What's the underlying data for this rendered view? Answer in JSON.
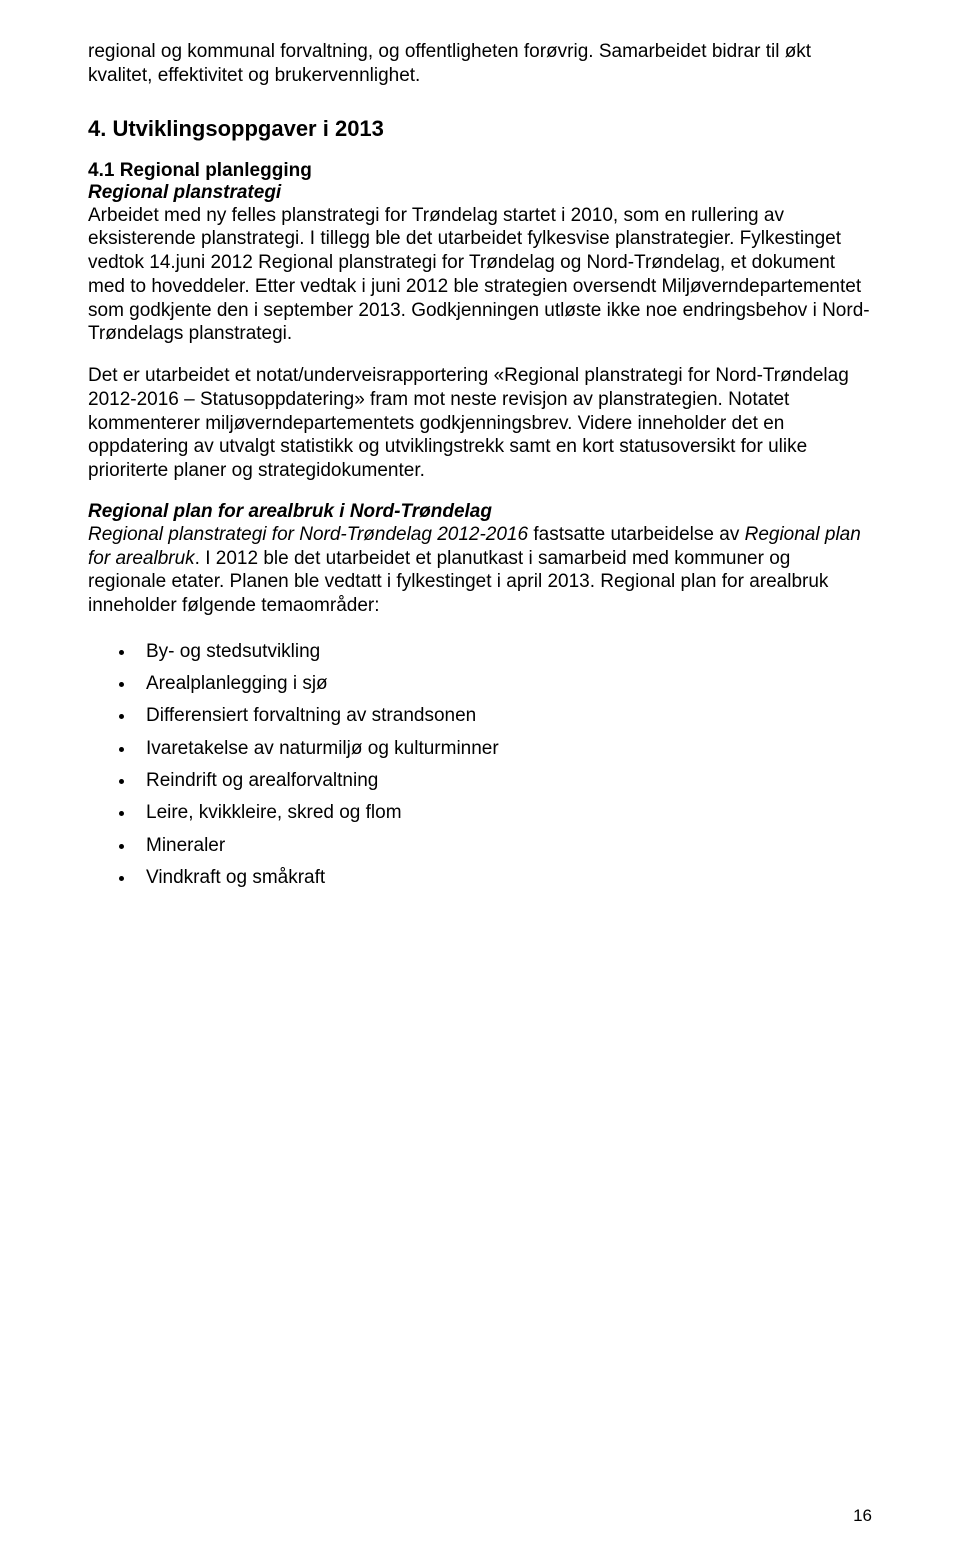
{
  "intro": "regional og kommunal forvaltning, og offentligheten forøvrig. Samarbeidet bidrar til økt kvalitet, effektivitet og brukervennlighet.",
  "h2": "4. Utviklingsoppgaver i 2013",
  "h3": "4.1 Regional planlegging",
  "s1_heading": "Regional planstrategi",
  "s1_para": "Arbeidet med ny felles planstrategi for Trøndelag startet i 2010, som en rullering av eksisterende planstrategi. I tillegg ble det utarbeidet fylkesvise planstrategier. Fylkestinget vedtok 14.juni 2012 Regional planstrategi for Trøndelag og Nord-Trøndelag, et dokument med to hoveddeler. Etter vedtak i juni 2012 ble strategien oversendt Miljøverndepartementet som godkjente den i september 2013. Godkjenningen utløste ikke noe endringsbehov i Nord-Trøndelags planstrategi.",
  "s1_para2": "Det er utarbeidet et notat/underveisrapportering «Regional planstrategi for Nord-Trøndelag 2012-2016 – Statusoppdatering» fram mot neste revisjon av planstrategien. Notatet kommenterer miljøverndepartementets godkjenningsbrev. Videre inneholder det en oppdatering av utvalgt statistikk og utviklingstrekk samt en kort statusoversikt for ulike prioriterte planer og strategidokumenter.",
  "s2_heading": "Regional plan for arealbruk i Nord-Trøndelag",
  "s2_run1_italic": "Regional planstrategi for Nord-Trøndelag 2012-2016",
  "s2_run1_rest": " fastsatte utarbeidelse av ",
  "s2_run2_italic": "Regional plan for arealbruk",
  "s2_run2_rest": ". I 2012 ble det utarbeidet et planutkast i samarbeid med kommuner og regionale etater. Planen ble vedtatt i fylkestinget i april 2013. Regional plan for arealbruk inneholder følgende temaområder:",
  "bullets": [
    "By- og stedsutvikling",
    "Arealplanlegging i sjø",
    "Differensiert forvaltning av strandsonen",
    "Ivaretakelse av naturmiljø og kulturminner",
    "Reindrift og arealforvaltning",
    "Leire, kvikkleire, skred og flom",
    "Mineraler",
    "Vindkraft og småkraft"
  ],
  "page_number": "16"
}
